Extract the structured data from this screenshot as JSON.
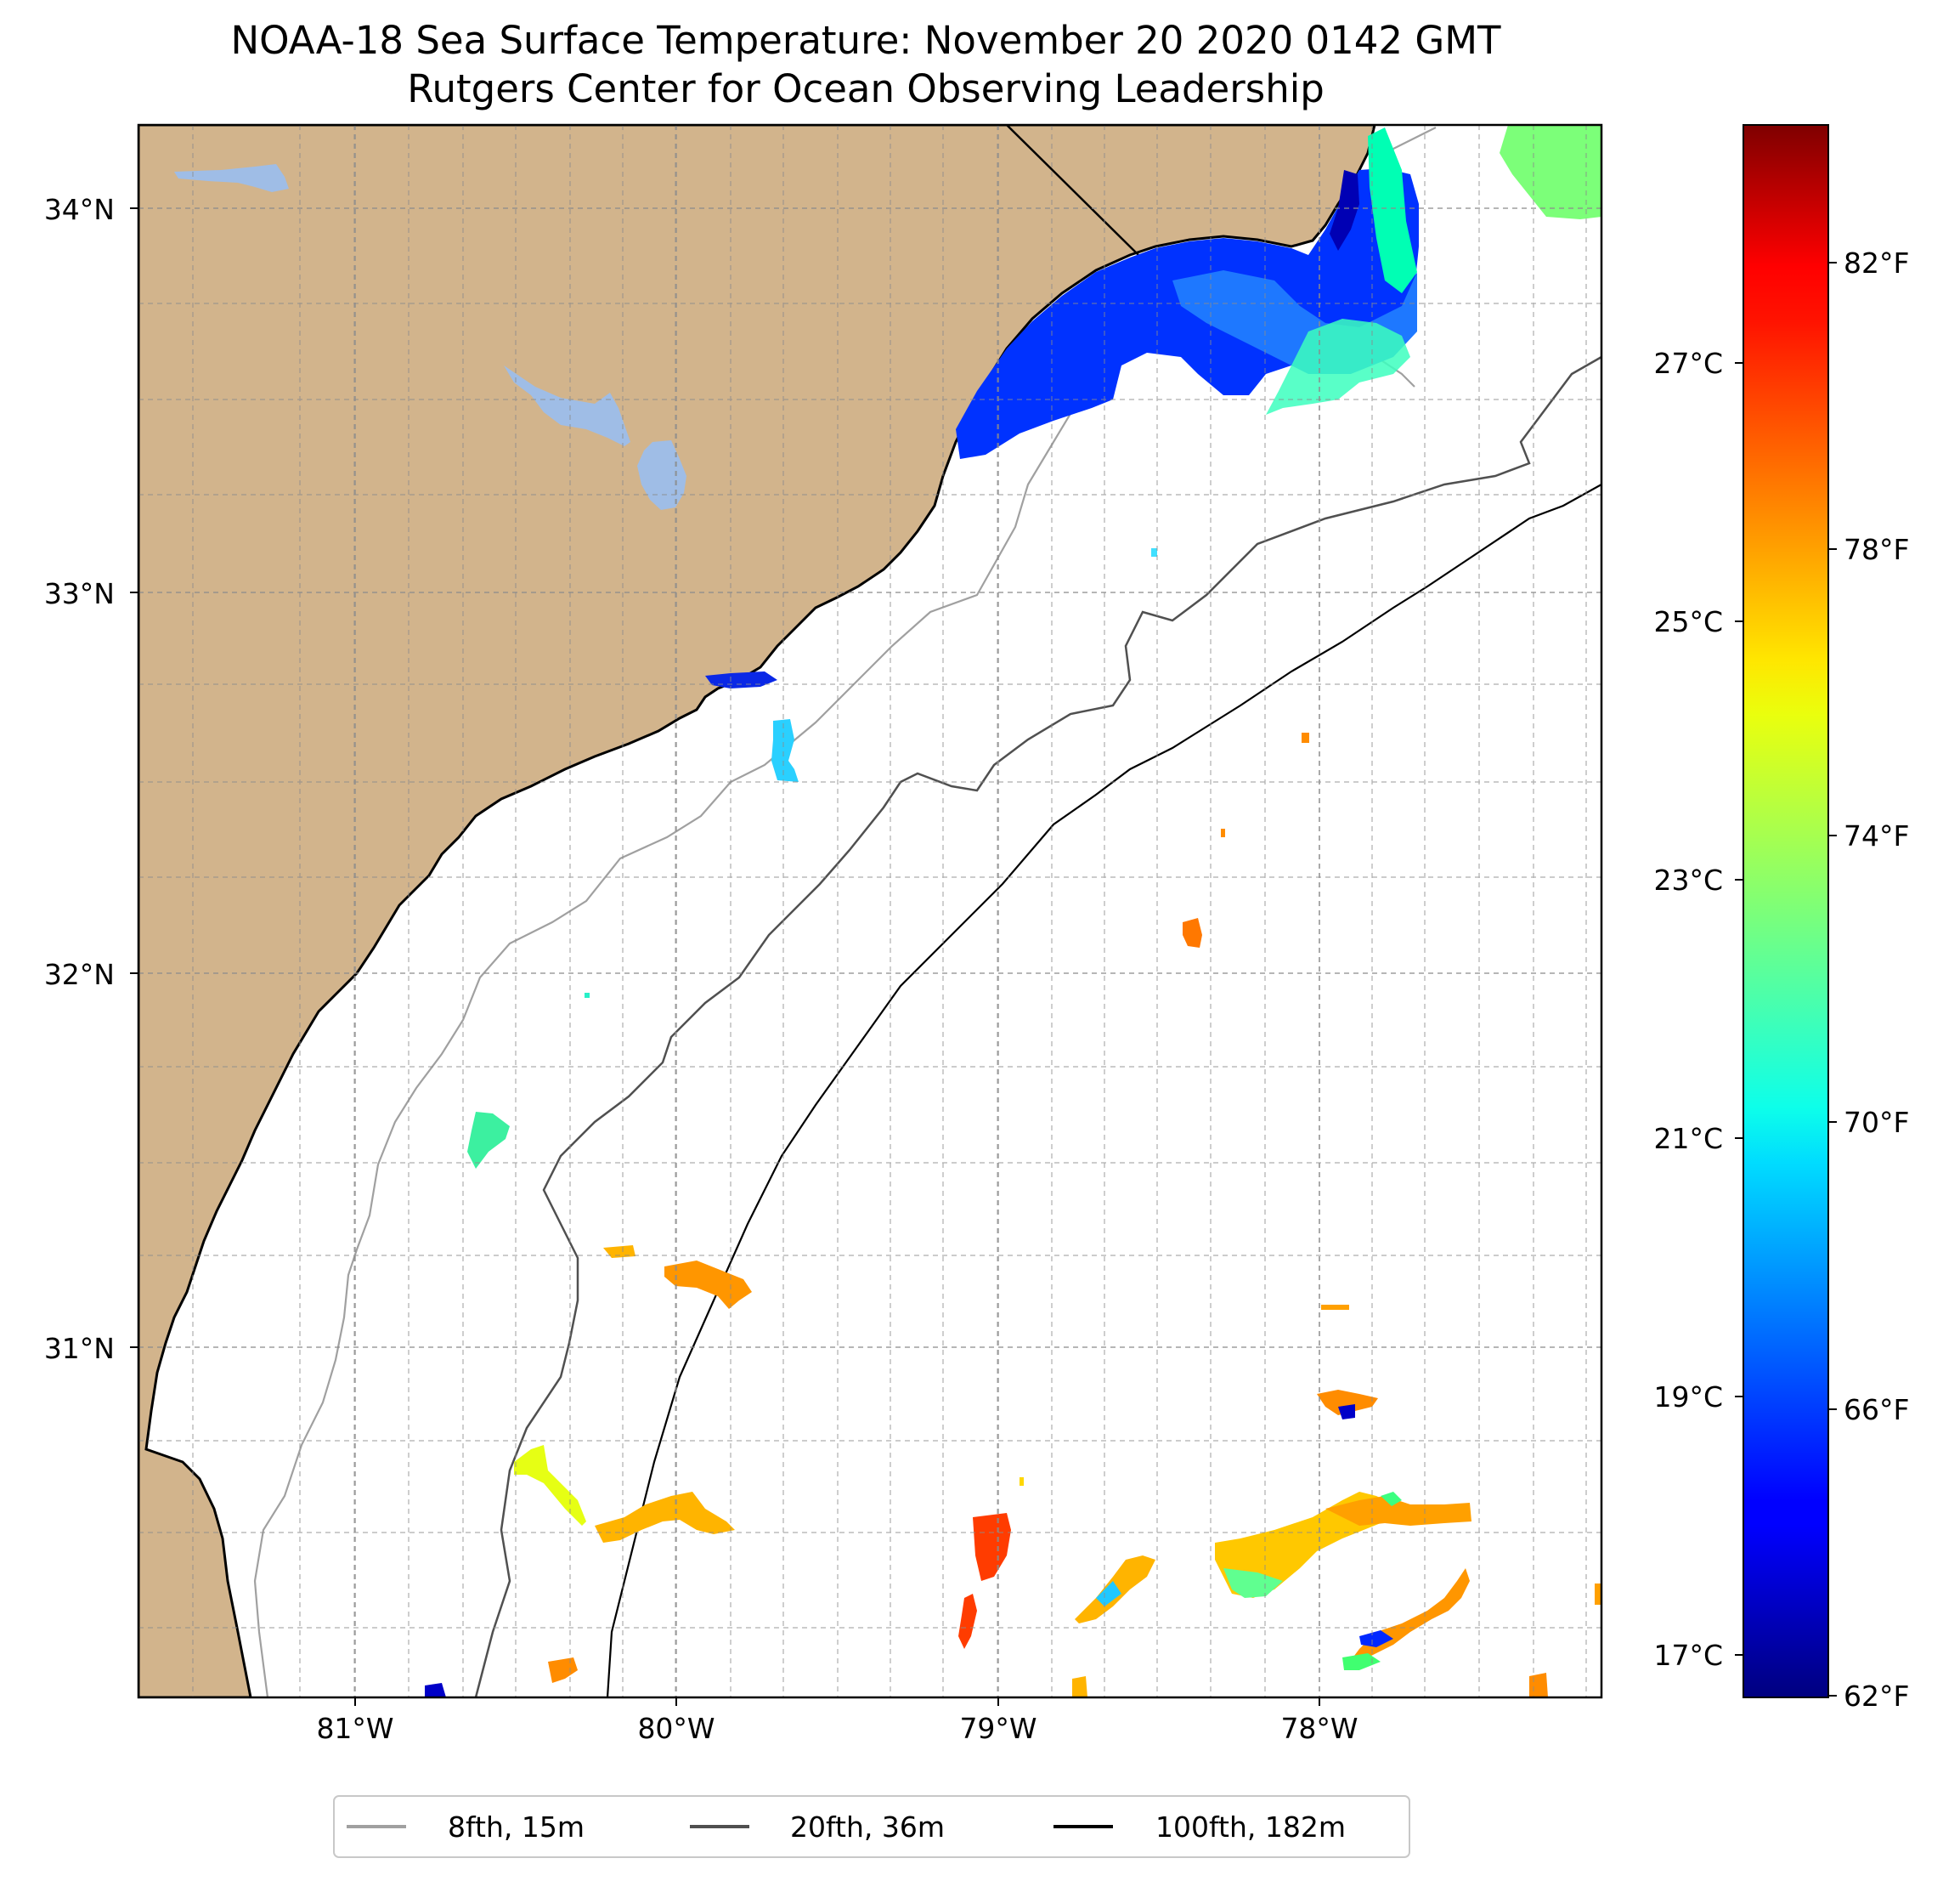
{
  "title": {
    "line1": "NOAA-18 Sea Surface Temperature: November 20 2020 0142 GMT",
    "line2": "Rutgers Center for Ocean Observing Leadership"
  },
  "map": {
    "lon_range": [
      -81.67,
      -77.11
    ],
    "lat_range": [
      30.07,
      34.22
    ],
    "land_color": "#d2b48c",
    "lake_color": "#9fbde6",
    "ocean_color": "#ffffff",
    "grid": true,
    "lat_labels": [
      "34°N",
      "33°N",
      "32°N",
      "31°N"
    ],
    "lon_labels": [
      "81°W",
      "80°W",
      "79°W",
      "78°W"
    ]
  },
  "colorbar": {
    "colormap": "jet",
    "range_f": [
      62,
      84
    ],
    "fahrenheit_labels": [
      "82°F",
      "78°F",
      "74°F",
      "70°F",
      "66°F",
      "62°F"
    ],
    "celsius_labels": [
      "27°C",
      "25°C",
      "23°C",
      "21°C",
      "19°C",
      "17°C"
    ]
  },
  "legend": {
    "items": [
      {
        "label": "8fth, 15m",
        "color": "#a0a0a0"
      },
      {
        "label": "20fth, 36m",
        "color": "#505050"
      },
      {
        "label": "100fth, 182m",
        "color": "#000000"
      }
    ]
  }
}
